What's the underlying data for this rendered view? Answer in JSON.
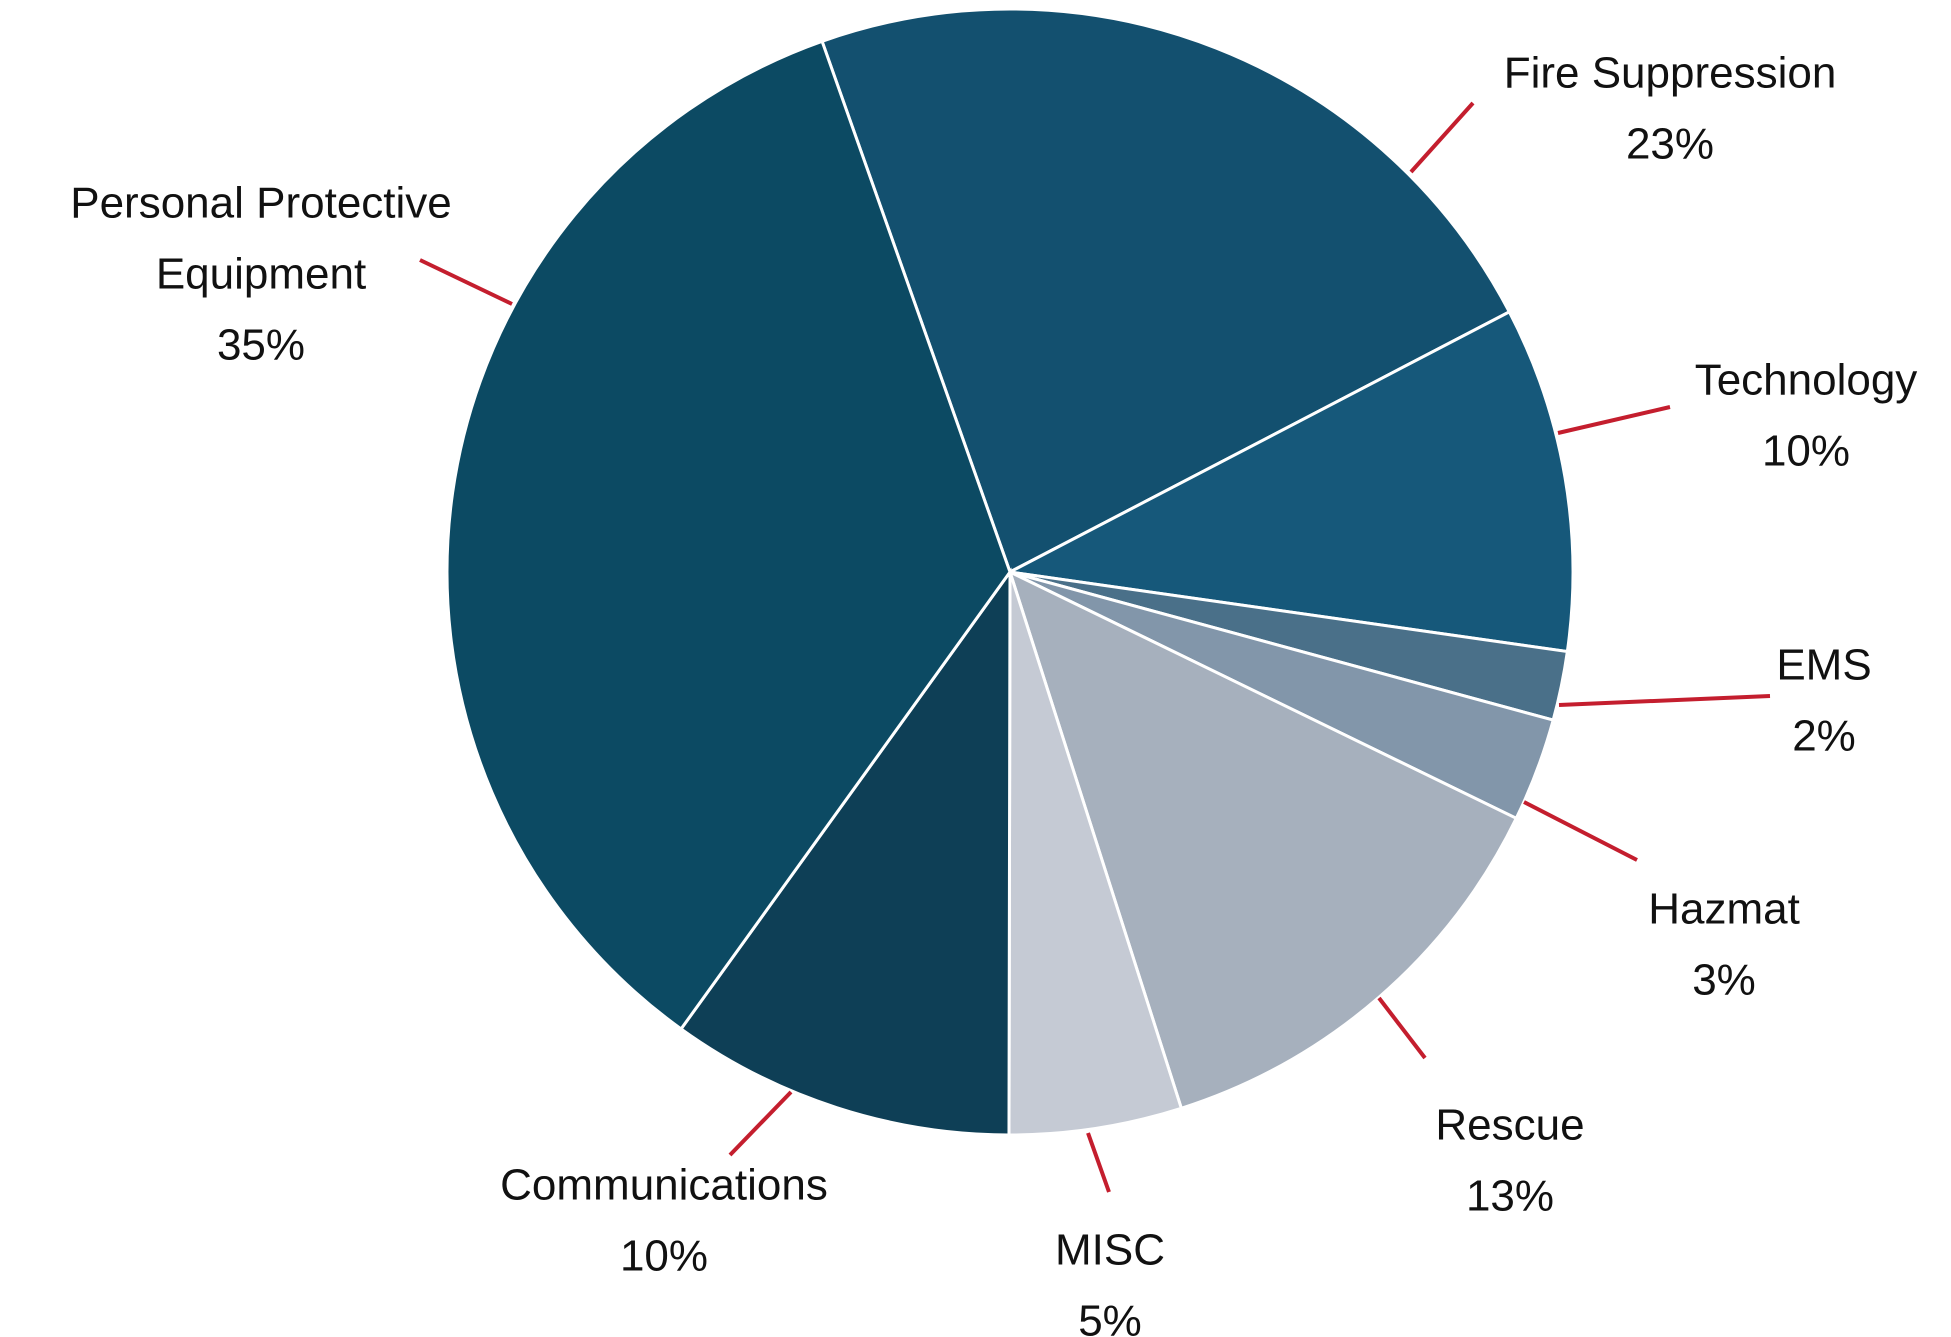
{
  "chart_data": {
    "type": "pie",
    "title": "",
    "slices": [
      {
        "label": [
          "Fire Suppression"
        ],
        "pct_text": "23%",
        "value": 23,
        "color": "#13506f"
      },
      {
        "label": [
          "Technology"
        ],
        "pct_text": "10%",
        "value": 10,
        "color": "#16587a"
      },
      {
        "label": [
          "EMS"
        ],
        "pct_text": "2%",
        "value": 2,
        "color": "#4a7089"
      },
      {
        "label": [
          "Hazmat"
        ],
        "pct_text": "3%",
        "value": 3,
        "color": "#8296aa"
      },
      {
        "label": [
          "Rescue"
        ],
        "pct_text": "13%",
        "value": 13,
        "color": "#a6b0bd"
      },
      {
        "label": [
          "MISC"
        ],
        "pct_text": "5%",
        "value": 5,
        "color": "#c5cad4"
      },
      {
        "label": [
          "Communications"
        ],
        "pct_text": "10%",
        "value": 10,
        "color": "#0e3f56"
      },
      {
        "label": [
          "Personal Protective",
          "Equipment"
        ],
        "pct_text": "35%",
        "value": 35,
        "color": "#0c4a63"
      }
    ],
    "legend": "none",
    "label_style": "outside labels with red leader lines"
  }
}
